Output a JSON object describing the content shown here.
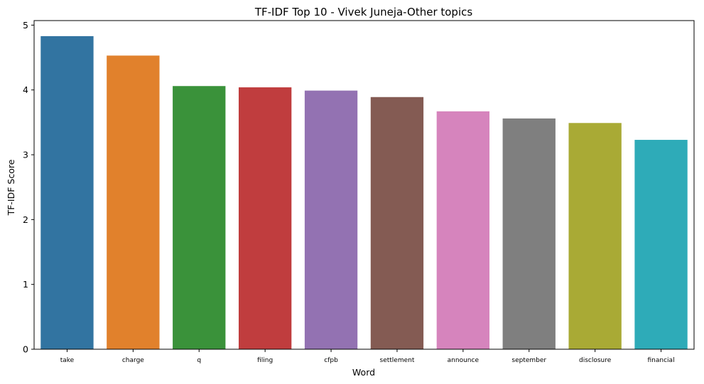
{
  "chart_data": {
    "type": "bar",
    "title": "TF-IDF Top 10 - Vivek Juneja-Other topics",
    "xlabel": "Word",
    "ylabel": "TF-IDF Score",
    "categories": [
      "take",
      "charge",
      "q",
      "filing",
      "cfpb",
      "settlement",
      "announce",
      "september",
      "disclosure",
      "financial"
    ],
    "values": [
      4.83,
      4.53,
      4.06,
      4.04,
      3.99,
      3.89,
      3.67,
      3.56,
      3.49,
      3.23
    ],
    "colors": [
      "#3274a1",
      "#e1812c",
      "#3a923a",
      "#c03d3e",
      "#9372b2",
      "#845b53",
      "#d684bd",
      "#7f7f7f",
      "#a9aa35",
      "#2eabb8"
    ],
    "ylim": [
      0,
      5.07
    ],
    "yticks": [
      "0",
      "1",
      "2",
      "3",
      "4",
      "5"
    ],
    "grid": false,
    "legend": "none"
  }
}
